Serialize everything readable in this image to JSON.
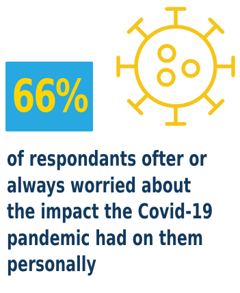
{
  "colors": {
    "badge_background": "#27a8e0",
    "badge_text": "#ffd500",
    "icon_stroke": "#f5c518",
    "caption_text": "#12395e"
  },
  "stat": {
    "value": "66%"
  },
  "icon": {
    "name": "virus-icon"
  },
  "caption": {
    "lines": [
      "of respondants ofter or",
      "always worried about",
      "the impact the Covid-19",
      "pandemic had on them",
      "personally"
    ]
  }
}
